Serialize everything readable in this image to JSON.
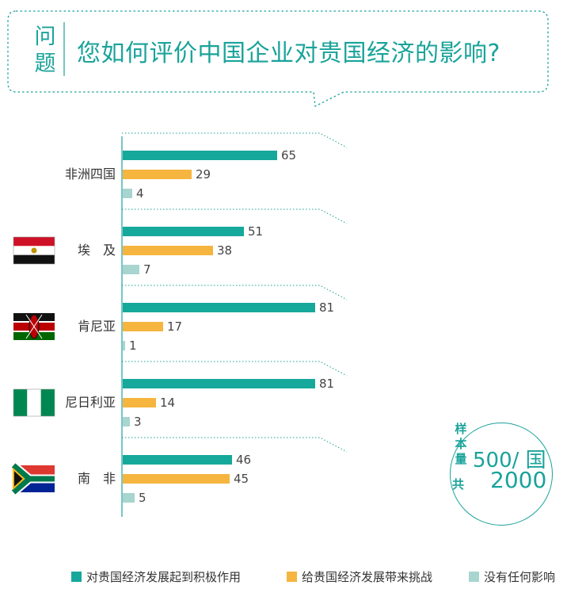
{
  "question": {
    "tag": "问题",
    "title": "您如何评价中国企业对贵国经济的影响?"
  },
  "colors": {
    "accent": "#1aa39a",
    "positive": "#17a89c",
    "challenge": "#f5b53e",
    "none": "#a8d5cf"
  },
  "chart_data": {
    "type": "bar",
    "orientation": "horizontal",
    "categories": [
      "非洲四国",
      "埃　及",
      "肯尼亚",
      "尼日利亚",
      "南　非"
    ],
    "flags": [
      "",
      "egypt-flag",
      "kenya-flag",
      "nigeria-flag",
      "south-africa-flag"
    ],
    "series": [
      {
        "name": "对贵国经济发展起到积极作用",
        "values": [
          65,
          51,
          81,
          81,
          46
        ],
        "color": "#17a89c"
      },
      {
        "name": "给贵国经济发展带来挑战",
        "values": [
          29,
          38,
          17,
          14,
          45
        ],
        "color": "#f5b53e"
      },
      {
        "name": "没有任何影响",
        "values": [
          4,
          7,
          1,
          3,
          5
        ],
        "color": "#a8d5cf"
      }
    ],
    "xlim": [
      0,
      100
    ],
    "legend_position": "bottom"
  },
  "sample": {
    "label": "样本量",
    "per_country": "500/ 国",
    "total_label": "共",
    "total": "2000"
  }
}
